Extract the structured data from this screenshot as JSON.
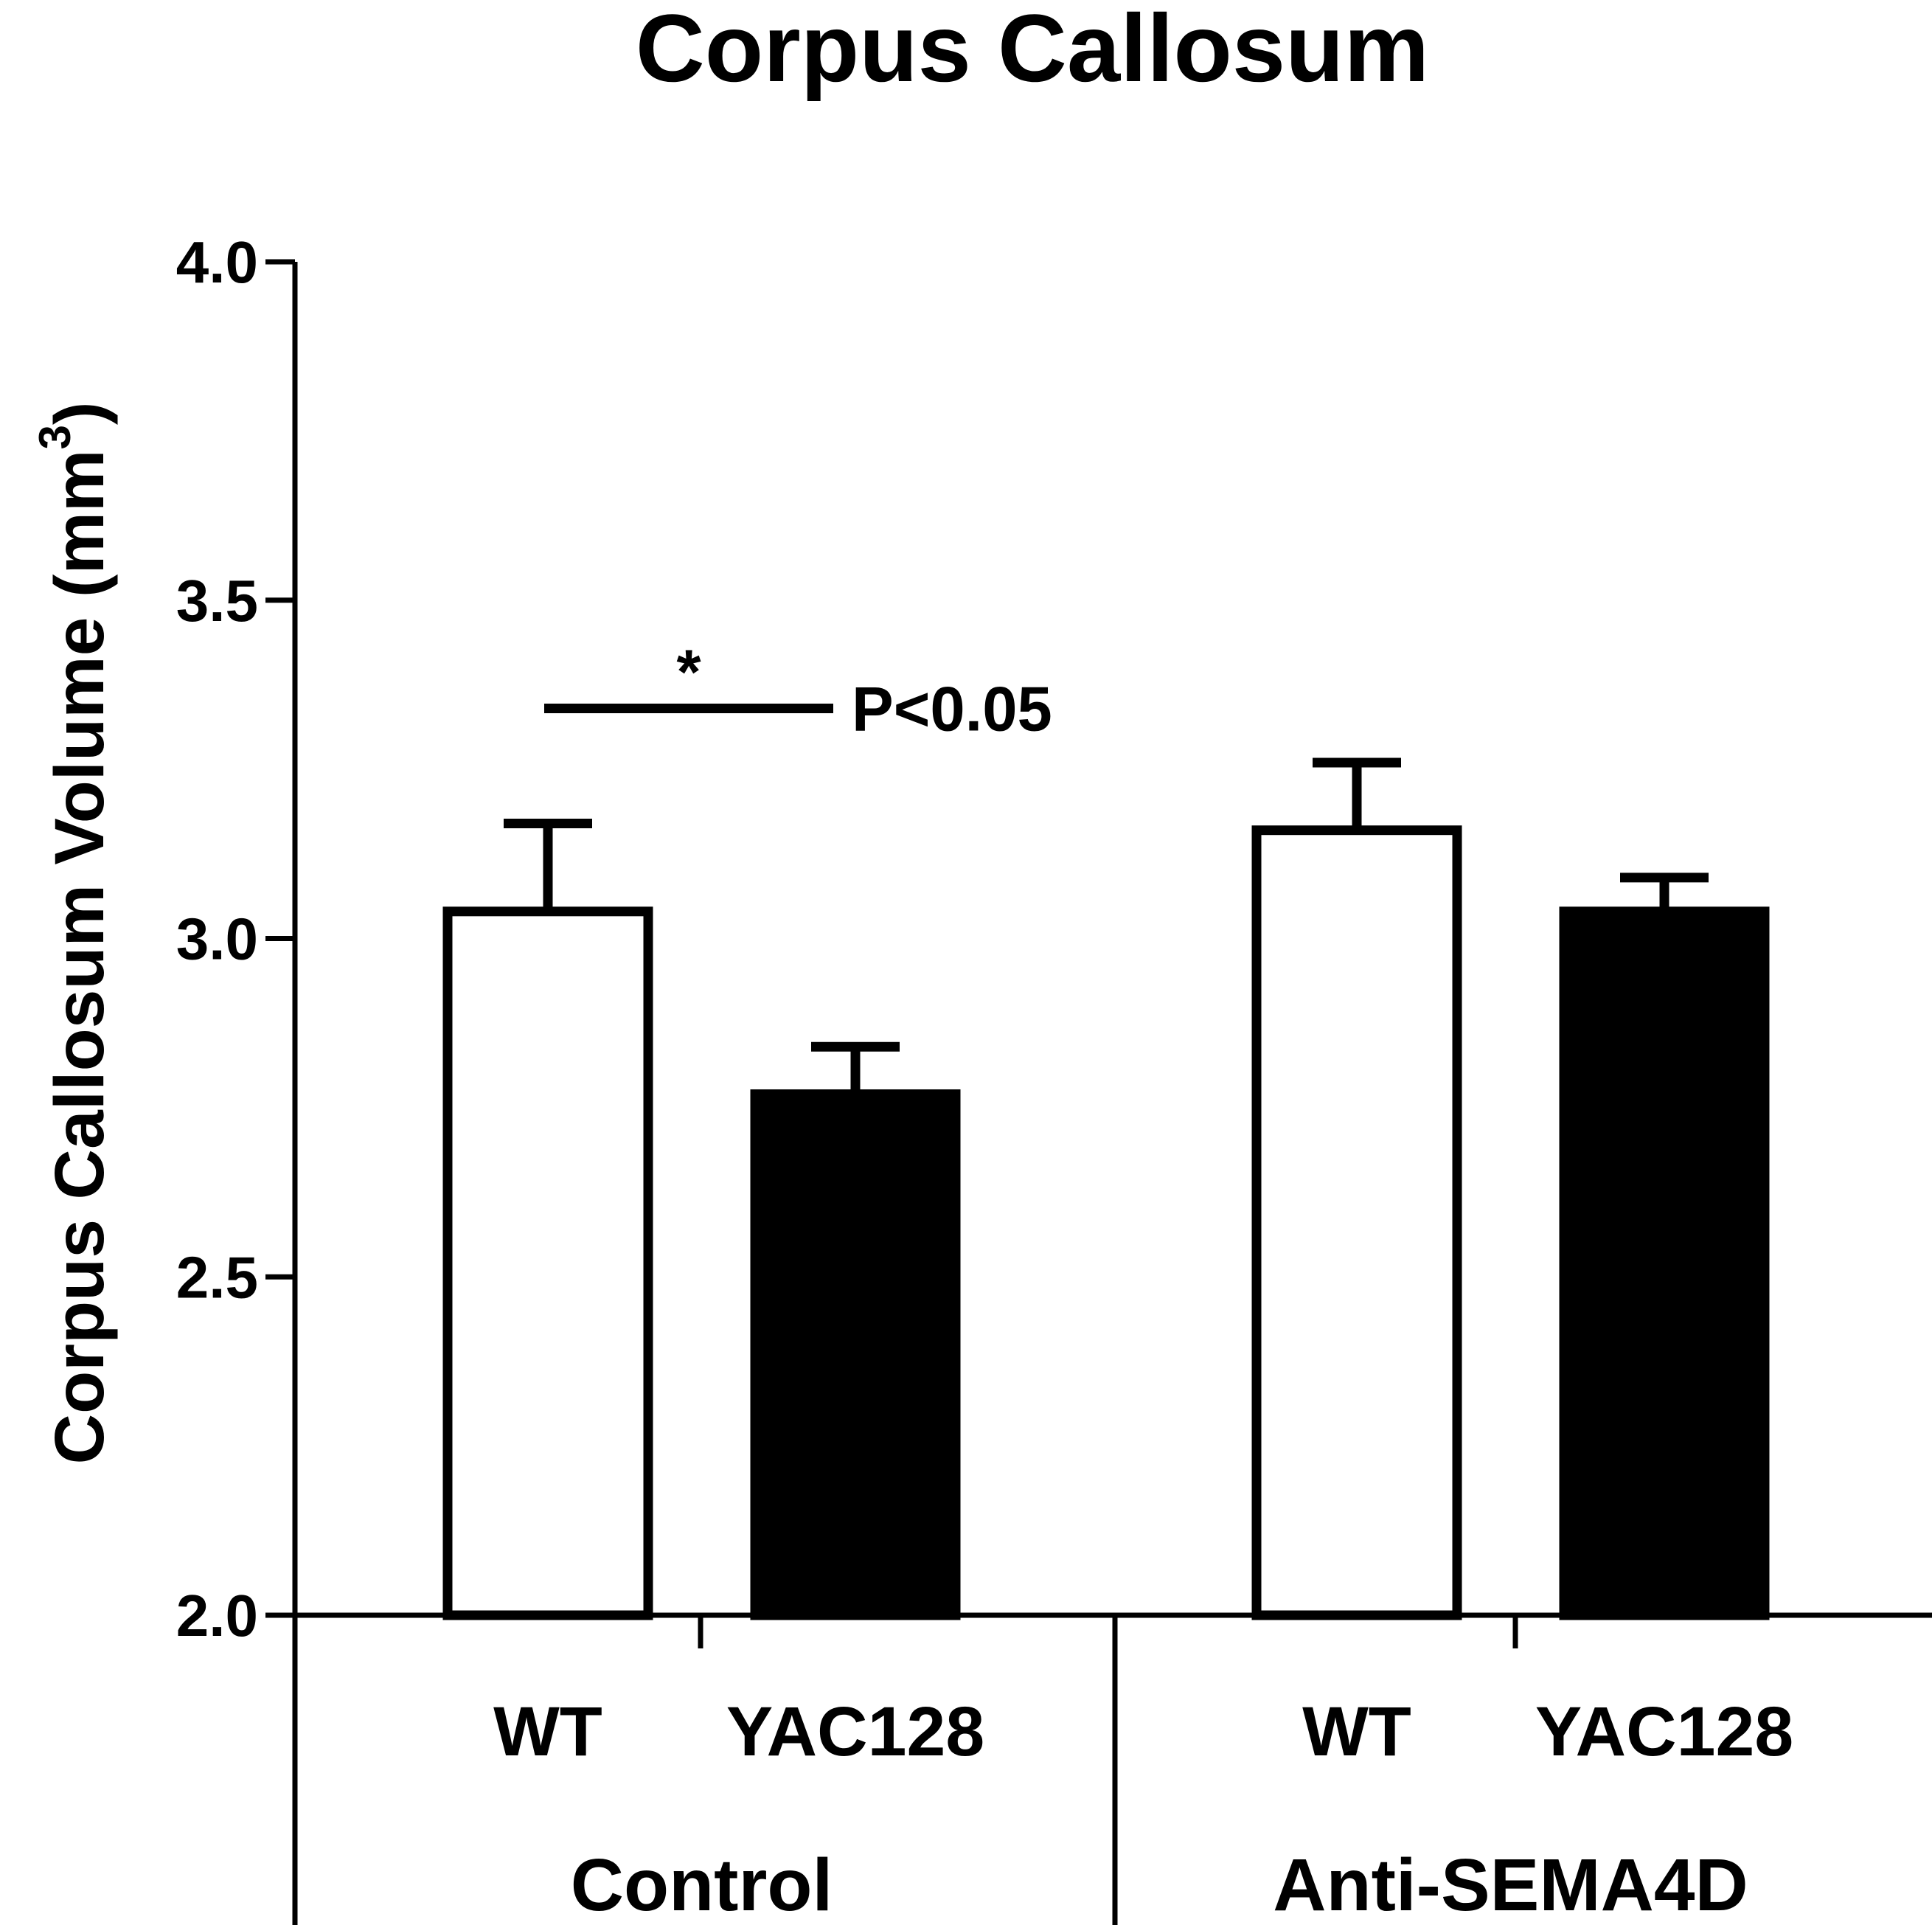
{
  "chart_data": {
    "type": "bar",
    "title": "Corpus Callosum",
    "ylabel": "Corpus Callosum Volume (mm",
    "ylabel_superscript": "3",
    "ylabel_close": ")",
    "ylim": [
      2.0,
      4.0
    ],
    "yticks": [
      "2.0",
      "2.5",
      "3.0",
      "3.5",
      "4.0"
    ],
    "groups": [
      "Control",
      "Anti-SEMA4D"
    ],
    "categories": [
      "WT",
      "YAC128",
      "WT",
      "YAC128"
    ],
    "values": [
      3.04,
      2.77,
      3.16,
      3.04
    ],
    "errors": [
      0.13,
      0.07,
      0.1,
      0.05
    ],
    "fills": [
      "#ffffff",
      "#000000",
      "#ffffff",
      "#000000"
    ],
    "annotation": {
      "star": "*",
      "text": "P<0.05",
      "y": 3.34,
      "from_bar": 0,
      "to_bar": 1
    },
    "grid": false
  }
}
